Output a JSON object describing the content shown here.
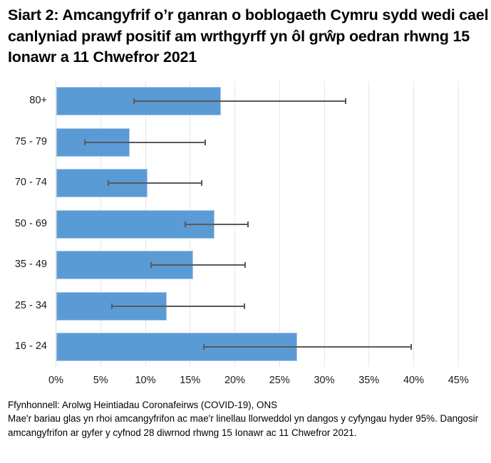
{
  "title": "Siart 2: Amcangyfrif o’r ganran o boblogaeth Cymru sydd wedi cael canlyniad prawf positif am wrthgyrff yn ôl grŵp oedran rhwng 15 Ionawr a 11 Chwefror 2021",
  "colors": {
    "bar": "#5b9bd5",
    "error_bar": "#595959",
    "grid": "#e6e6e6"
  },
  "notes": {
    "source": "Ffynhonnell: Arolwg Heintiadau Coronafeirws (COVID-19), ONS",
    "description": "Mae'r bariau glas yn rhoi amcangyfrifon ac mae'r linellau llorweddol yn dangos y cyfyngau hyder 95%. Dangosir amcangyfrifon ar gyfer y cyfnod 28 diwrnod rhwng 15 Ionawr ac 11 Chwefror 2021."
  },
  "chart_data": {
    "type": "bar",
    "orientation": "horizontal",
    "title": "Siart 2: Amcangyfrif o’r ganran o boblogaeth Cymru sydd wedi cael canlyniad prawf positif am wrthgyrff yn ôl grŵp oedran rhwng 15 Ionawr a 11 Chwefror 2021",
    "xlabel": "",
    "ylabel": "",
    "categories": [
      "80+",
      "75 - 79",
      "70 - 74",
      "50 - 69",
      "35 - 49",
      "25 - 34",
      "16 - 24"
    ],
    "values": [
      18.5,
      8.3,
      10.3,
      17.8,
      15.4,
      12.4,
      27.0
    ],
    "ci_lower": [
      8.8,
      3.3,
      5.9,
      14.5,
      10.7,
      6.3,
      16.6
    ],
    "ci_upper": [
      32.4,
      16.7,
      16.3,
      21.5,
      21.2,
      21.1,
      39.8
    ],
    "xlim": [
      0,
      45
    ],
    "xticks": [
      0,
      5,
      10,
      15,
      20,
      25,
      30,
      35,
      40,
      45
    ],
    "xtick_labels": [
      "0%",
      "5%",
      "10%",
      "15%",
      "20%",
      "25%",
      "30%",
      "35%",
      "40%",
      "45%"
    ],
    "grid": true,
    "legend": null
  }
}
